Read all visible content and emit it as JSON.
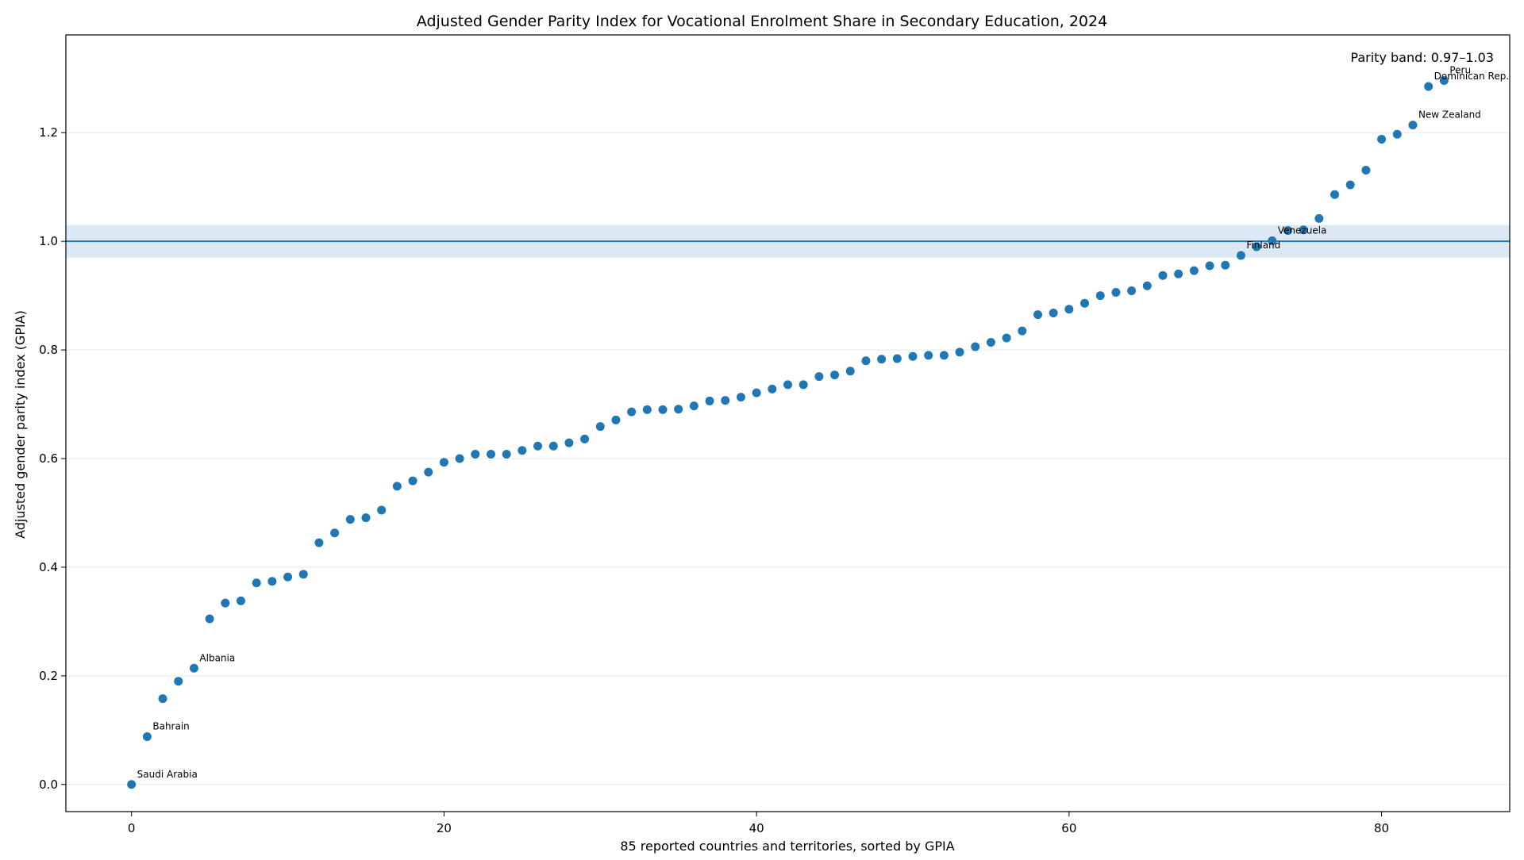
{
  "chart_data": {
    "type": "scatter",
    "title": "Adjusted Gender Parity Index for Vocational Enrolment Share in Secondary Education, 2024",
    "xlabel": "85 reported countries and territories, sorted by GPIA",
    "ylabel": "Adjusted gender parity index (GPIA)",
    "xlim": [
      -4.2,
      88.2
    ],
    "ylim": [
      -0.05,
      1.38
    ],
    "x_ticks": [
      0,
      20,
      40,
      60,
      80
    ],
    "x_tick_labels": [
      "0",
      "20",
      "40",
      "60",
      "80"
    ],
    "y_ticks": [
      0.0,
      0.2,
      0.4,
      0.6,
      0.8,
      1.0,
      1.2
    ],
    "y_tick_labels": [
      "0.0",
      "0.2",
      "0.4",
      "0.6",
      "0.8",
      "1.0",
      "1.2"
    ],
    "grid": "horizontal",
    "parity_line": 1.0,
    "parity_band": [
      0.97,
      1.03
    ],
    "band_label": "Parity band: 0.97–1.03",
    "colors": {
      "points": "#1f77b4",
      "parity_line": "#1f77b4",
      "band": "#dce8f4",
      "grid": "#e8e8e8"
    },
    "x": [
      0,
      1,
      2,
      3,
      4,
      5,
      6,
      7,
      8,
      9,
      10,
      11,
      12,
      13,
      14,
      15,
      16,
      17,
      18,
      19,
      20,
      21,
      22,
      23,
      24,
      25,
      26,
      27,
      28,
      29,
      30,
      31,
      32,
      33,
      34,
      35,
      36,
      37,
      38,
      39,
      40,
      41,
      42,
      43,
      44,
      45,
      46,
      47,
      48,
      49,
      50,
      51,
      52,
      53,
      54,
      55,
      56,
      57,
      58,
      59,
      60,
      61,
      62,
      63,
      64,
      65,
      66,
      67,
      68,
      69,
      70,
      71,
      72,
      73,
      74,
      75,
      76,
      77,
      78,
      79,
      80,
      81,
      82,
      83,
      84
    ],
    "y": [
      0.0,
      0.088,
      0.158,
      0.19,
      0.214,
      0.305,
      0.334,
      0.338,
      0.371,
      0.374,
      0.382,
      0.387,
      0.445,
      0.463,
      0.488,
      0.491,
      0.505,
      0.549,
      0.559,
      0.575,
      0.593,
      0.6,
      0.608,
      0.608,
      0.608,
      0.615,
      0.623,
      0.623,
      0.629,
      0.636,
      0.659,
      0.671,
      0.686,
      0.69,
      0.69,
      0.691,
      0.697,
      0.706,
      0.707,
      0.713,
      0.721,
      0.728,
      0.736,
      0.736,
      0.751,
      0.754,
      0.761,
      0.78,
      0.783,
      0.784,
      0.788,
      0.79,
      0.79,
      0.796,
      0.806,
      0.814,
      0.822,
      0.835,
      0.865,
      0.868,
      0.875,
      0.886,
      0.9,
      0.906,
      0.909,
      0.918,
      0.937,
      0.94,
      0.946,
      0.955,
      0.956,
      0.974,
      0.99,
      1.001,
      1.02,
      1.021,
      1.042,
      1.086,
      1.104,
      1.131,
      1.188,
      1.197,
      1.214,
      1.285,
      1.296
    ],
    "annotations": [
      {
        "x": 0,
        "y": 0.0,
        "text": "Saudi Arabia"
      },
      {
        "x": 1,
        "y": 0.088,
        "text": "Bahrain"
      },
      {
        "x": 4,
        "y": 0.214,
        "text": "Albania"
      },
      {
        "x": 71,
        "y": 0.974,
        "text": "Finland"
      },
      {
        "x": 73,
        "y": 1.001,
        "text": "Venezuela"
      },
      {
        "x": 82,
        "y": 1.214,
        "text": "New Zealand"
      },
      {
        "x": 83,
        "y": 1.285,
        "text": "Dominican Rep."
      },
      {
        "x": 84,
        "y": 1.296,
        "text": "Peru"
      }
    ]
  }
}
